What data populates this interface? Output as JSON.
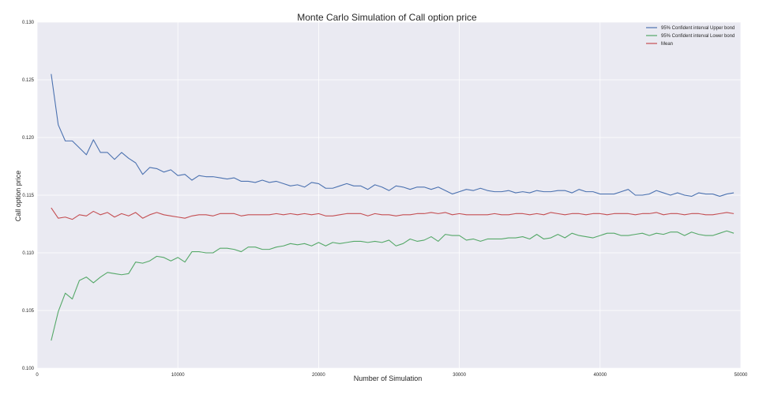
{
  "chart_data": {
    "type": "line",
    "title": "Monte Carlo Simulation of Call option price",
    "xlabel": "Number of Simulation",
    "ylabel": "Call option price",
    "xlim": [
      0,
      50000
    ],
    "ylim": [
      0.1,
      0.13
    ],
    "xticks": [
      0,
      10000,
      20000,
      30000,
      40000,
      50000
    ],
    "yticks": [
      0.1,
      0.105,
      0.11,
      0.115,
      0.12,
      0.125,
      0.13
    ],
    "xtick_labels": [
      "0",
      "10000",
      "20000",
      "30000",
      "40000",
      "50000"
    ],
    "ytick_labels": [
      "0.100",
      "0.105",
      "0.110",
      "0.115",
      "0.120",
      "0.125",
      "0.130"
    ],
    "grid": true,
    "legend_position": "top-right",
    "colors": {
      "upper": "#4c72b0",
      "lower": "#55a868",
      "mean": "#c44e52",
      "plot_background": "#eaeaf2",
      "grid": "#ffffff"
    },
    "x": [
      1000,
      1500,
      2000,
      2500,
      3000,
      3500,
      4000,
      4500,
      5000,
      5500,
      6000,
      6500,
      7000,
      7500,
      8000,
      8500,
      9000,
      9500,
      10000,
      10500,
      11000,
      11500,
      12000,
      12500,
      13000,
      13500,
      14000,
      14500,
      15000,
      15500,
      16000,
      16500,
      17000,
      17500,
      18000,
      18500,
      19000,
      19500,
      20000,
      20500,
      21000,
      21500,
      22000,
      22500,
      23000,
      23500,
      24000,
      24500,
      25000,
      25500,
      26000,
      26500,
      27000,
      27500,
      28000,
      28500,
      29000,
      29500,
      30000,
      30500,
      31000,
      31500,
      32000,
      32500,
      33000,
      33500,
      34000,
      34500,
      35000,
      35500,
      36000,
      36500,
      37000,
      37500,
      38000,
      38500,
      39000,
      39500,
      40000,
      40500,
      41000,
      41500,
      42000,
      42500,
      43000,
      43500,
      44000,
      44500,
      45000,
      45500,
      46000,
      46500,
      47000,
      47500,
      48000,
      48500,
      49000,
      49500
    ],
    "series": [
      {
        "name": "95% Confident interval Upper bond",
        "key": "upper",
        "values": [
          0.1255,
          0.1211,
          0.1197,
          0.1197,
          0.1191,
          0.1185,
          0.1198,
          0.1187,
          0.1187,
          0.1181,
          0.1187,
          0.1182,
          0.1178,
          0.1168,
          0.1174,
          0.1173,
          0.117,
          0.1172,
          0.1167,
          0.1168,
          0.1163,
          0.1167,
          0.1166,
          0.1166,
          0.1165,
          0.1164,
          0.1165,
          0.1162,
          0.1162,
          0.1161,
          0.1163,
          0.1161,
          0.1162,
          0.116,
          0.1158,
          0.1159,
          0.1157,
          0.1161,
          0.116,
          0.1156,
          0.1156,
          0.1158,
          0.116,
          0.1158,
          0.1158,
          0.1155,
          0.1159,
          0.1157,
          0.1154,
          0.1158,
          0.1157,
          0.1155,
          0.1157,
          0.1157,
          0.1155,
          0.1157,
          0.1154,
          0.1151,
          0.1153,
          0.1155,
          0.1154,
          0.1156,
          0.1154,
          0.1153,
          0.1153,
          0.1154,
          0.1152,
          0.1153,
          0.1152,
          0.1154,
          0.1153,
          0.1153,
          0.1154,
          0.1154,
          0.1152,
          0.1155,
          0.1153,
          0.1153,
          0.1151,
          0.1151,
          0.1151,
          0.1153,
          0.1155,
          0.115,
          0.115,
          0.1151,
          0.1154,
          0.1152,
          0.115,
          0.1152,
          0.115,
          0.1149,
          0.1152,
          0.1151,
          0.1151,
          0.1149,
          0.1151,
          0.1152
        ],
        "note": ""
      },
      {
        "name": "95% Confident interval Lower bond",
        "key": "lower",
        "values": [
          0.1024,
          0.1049,
          0.1065,
          0.106,
          0.1076,
          0.1079,
          0.1074,
          0.1079,
          0.1083,
          0.1082,
          0.1081,
          0.1082,
          0.1092,
          0.1091,
          0.1093,
          0.1097,
          0.1096,
          0.1093,
          0.1096,
          0.1092,
          0.1101,
          0.1101,
          0.11,
          0.11,
          0.1104,
          0.1104,
          0.1103,
          0.1101,
          0.1105,
          0.1105,
          0.1103,
          0.1103,
          0.1105,
          0.1106,
          0.1108,
          0.1107,
          0.1108,
          0.1106,
          0.1109,
          0.1106,
          0.1109,
          0.1108,
          0.1109,
          0.111,
          0.111,
          0.1109,
          0.111,
          0.1109,
          0.1111,
          0.1106,
          0.1108,
          0.1112,
          0.111,
          0.1111,
          0.1114,
          0.111,
          0.1116,
          0.1115,
          0.1115,
          0.1111,
          0.1112,
          0.111,
          0.1112,
          0.1112,
          0.1112,
          0.1113,
          0.1113,
          0.1114,
          0.1112,
          0.1116,
          0.1112,
          0.1113,
          0.1116,
          0.1113,
          0.1117,
          0.1115,
          0.1114,
          0.1113,
          0.1115,
          0.1117,
          0.1117,
          0.1115,
          0.1115,
          0.1116,
          0.1117,
          0.1115,
          0.1117,
          0.1116,
          0.1118,
          0.1118,
          0.1115,
          0.1118,
          0.1116,
          0.1115,
          0.1115,
          0.1117,
          0.1119,
          0.1117
        ]
      },
      {
        "name": "Mean",
        "key": "mean",
        "values": [
          0.1139,
          0.113,
          0.1131,
          0.1129,
          0.1133,
          0.1132,
          0.1136,
          0.1133,
          0.1135,
          0.1131,
          0.1134,
          0.1132,
          0.1135,
          0.113,
          0.1133,
          0.1135,
          0.1133,
          0.1132,
          0.1131,
          0.113,
          0.1132,
          0.1133,
          0.1133,
          0.1132,
          0.1134,
          0.1134,
          0.1134,
          0.1132,
          0.1133,
          0.1133,
          0.1133,
          0.1133,
          0.1134,
          0.1133,
          0.1134,
          0.1133,
          0.1134,
          0.1133,
          0.1134,
          0.1132,
          0.1132,
          0.1133,
          0.1134,
          0.1134,
          0.1134,
          0.1132,
          0.1134,
          0.1133,
          0.1133,
          0.1132,
          0.1133,
          0.1133,
          0.1134,
          0.1134,
          0.1135,
          0.1134,
          0.1135,
          0.1133,
          0.1134,
          0.1133,
          0.1133,
          0.1133,
          0.1133,
          0.1134,
          0.1133,
          0.1133,
          0.1134,
          0.1134,
          0.1133,
          0.1134,
          0.1133,
          0.1135,
          0.1134,
          0.1133,
          0.1134,
          0.1134,
          0.1133,
          0.1134,
          0.1134,
          0.1133,
          0.1134,
          0.1134,
          0.1134,
          0.1133,
          0.1134,
          0.1134,
          0.1135,
          0.1133,
          0.1134,
          0.1134,
          0.1133,
          0.1134,
          0.1134,
          0.1133,
          0.1133,
          0.1134,
          0.1135,
          0.1134
        ]
      }
    ]
  }
}
